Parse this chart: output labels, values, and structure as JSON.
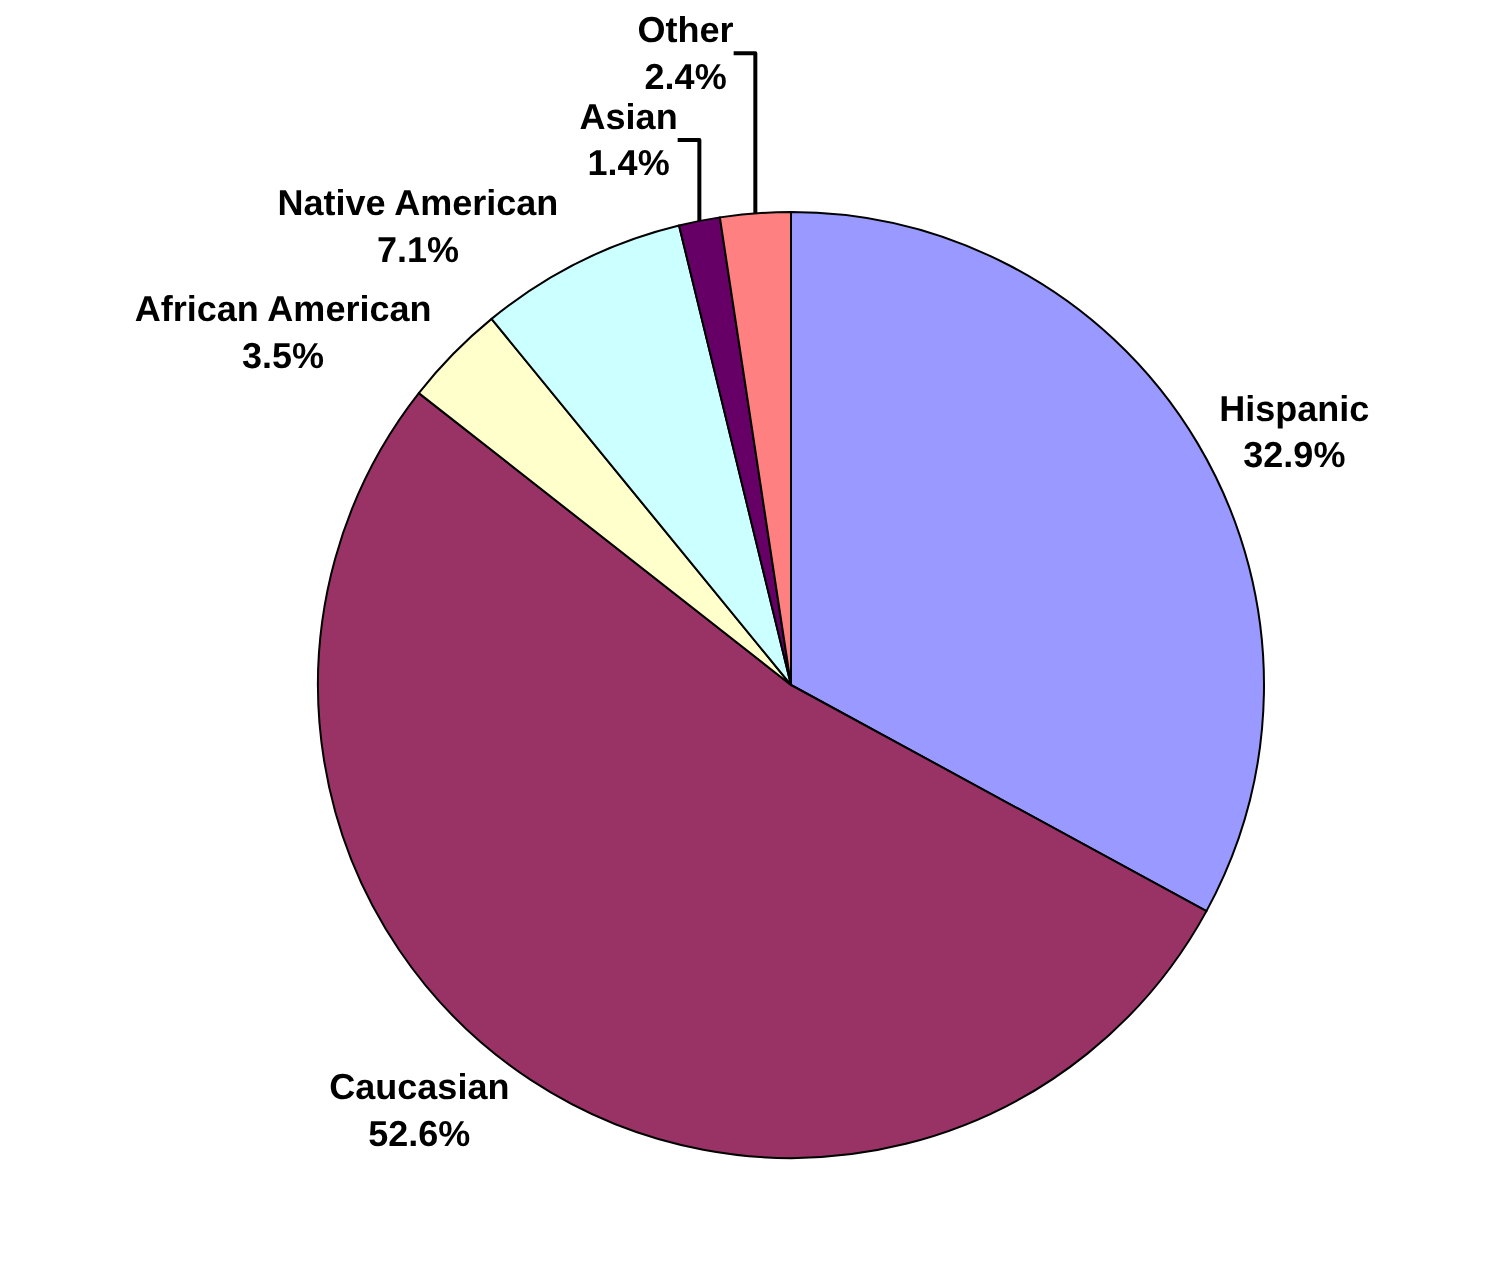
{
  "chart_data": {
    "type": "pie",
    "categories": [
      "Hispanic",
      "Caucasian",
      "African American",
      "Native American",
      "Asian",
      "Other"
    ],
    "values": [
      32.9,
      52.6,
      3.5,
      7.1,
      1.4,
      2.4
    ],
    "value_labels": [
      "32.9%",
      "52.6%",
      "3.5%",
      "7.1%",
      "1.4%",
      "2.4%"
    ],
    "colors": [
      "#9999ff",
      "#993366",
      "#ffffcc",
      "#ccffff",
      "#660066",
      "#ff8080"
    ]
  }
}
